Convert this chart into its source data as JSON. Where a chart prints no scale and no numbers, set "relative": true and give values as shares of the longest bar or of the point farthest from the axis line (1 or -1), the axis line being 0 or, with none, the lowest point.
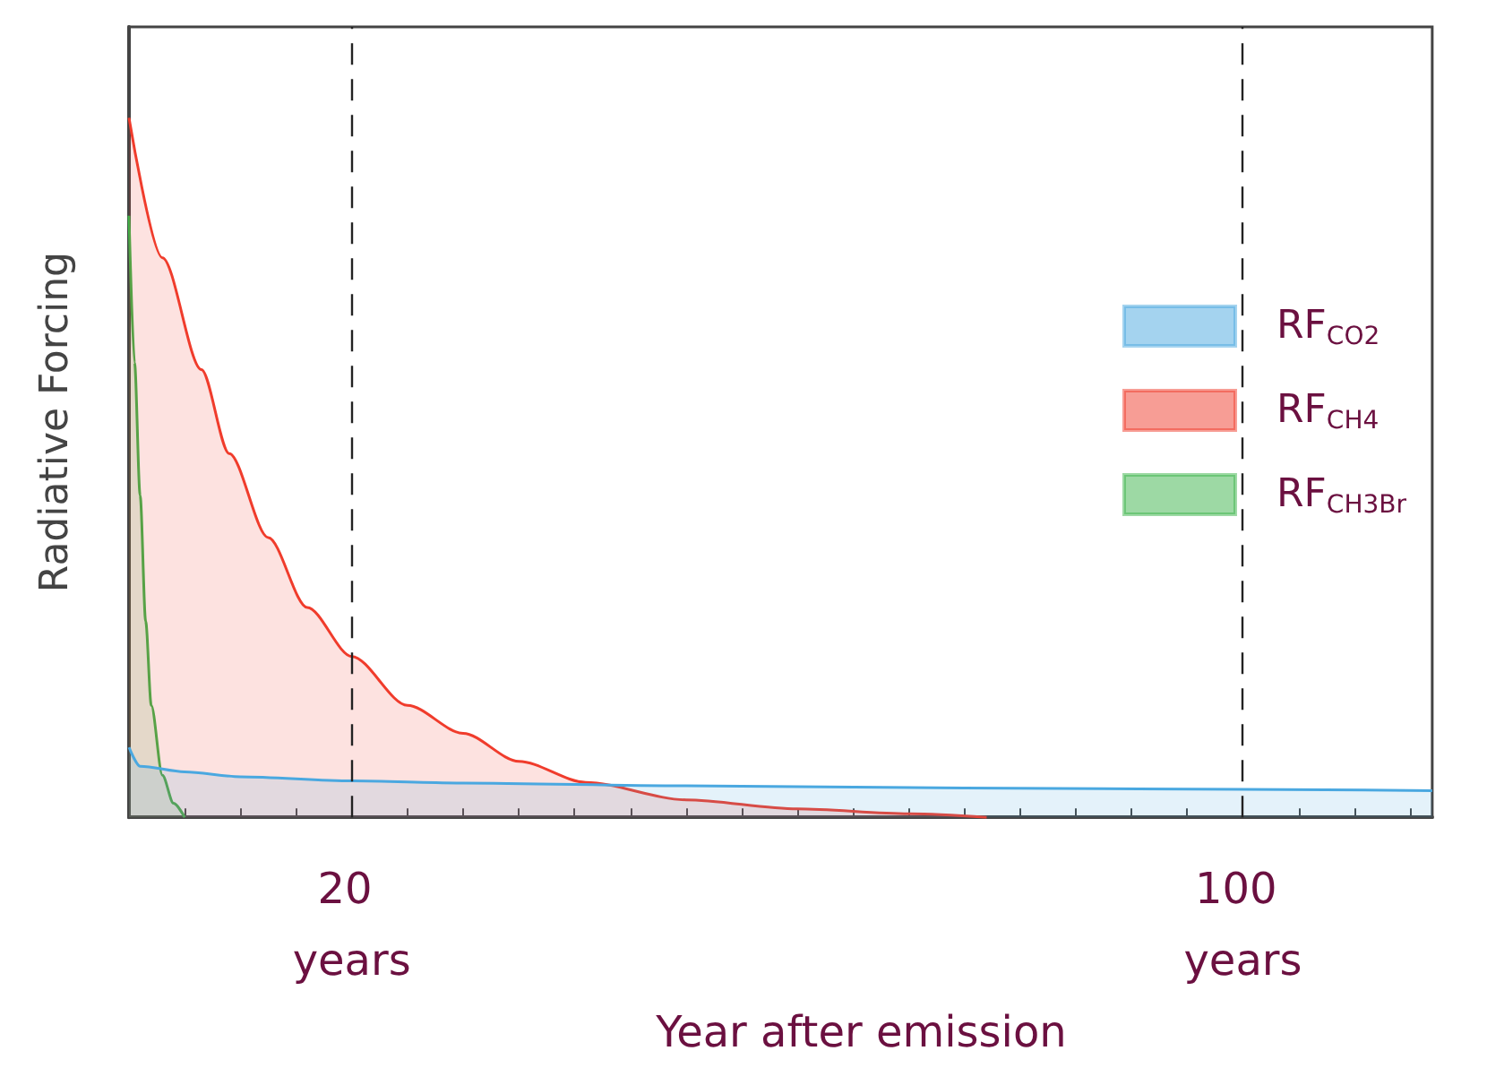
{
  "chart_data": {
    "type": "area",
    "relative": true,
    "xlabel": "Year after emission",
    "ylabel": "Radiative Forcing",
    "xlim": [
      0,
      117
    ],
    "xticks": [
      {
        "value": 0,
        "label": null
      },
      {
        "value": 5,
        "label": null
      },
      {
        "value": 10,
        "label": null
      },
      {
        "value": 15,
        "label": null
      },
      {
        "value": 20,
        "label": "20 years"
      },
      {
        "value": 25,
        "label": null
      },
      {
        "value": 30,
        "label": null
      },
      {
        "value": 35,
        "label": null
      },
      {
        "value": 40,
        "label": null
      },
      {
        "value": 45,
        "label": null
      },
      {
        "value": 50,
        "label": null
      },
      {
        "value": 55,
        "label": null
      },
      {
        "value": 60,
        "label": null
      },
      {
        "value": 65,
        "label": null
      },
      {
        "value": 70,
        "label": null
      },
      {
        "value": 75,
        "label": null
      },
      {
        "value": 80,
        "label": null
      },
      {
        "value": 85,
        "label": null
      },
      {
        "value": 90,
        "label": null
      },
      {
        "value": 95,
        "label": null
      },
      {
        "value": 100,
        "label": "100 years"
      },
      {
        "value": 105,
        "label": null
      },
      {
        "value": 110,
        "label": null
      },
      {
        "value": 115,
        "label": null
      }
    ],
    "series": [
      {
        "name": "RF$_{CO2}$",
        "color": "#4aa8e0",
        "x": [
          0,
          1,
          5,
          10,
          20,
          30,
          50,
          75,
          100,
          117
        ],
        "values": [
          0.1,
          0.073,
          0.065,
          0.058,
          0.052,
          0.049,
          0.045,
          0.042,
          0.04,
          0.038
        ]
      },
      {
        "name": "RF$_{CH4}$",
        "color": "#f03c2c",
        "x": [
          0,
          3,
          6.5,
          9,
          12.5,
          16,
          20,
          25,
          30,
          35,
          41,
          50,
          60,
          70,
          77
        ],
        "values": [
          1,
          0.8,
          0.64,
          0.52,
          0.4,
          0.3,
          0.23,
          0.16,
          0.12,
          0.08,
          0.05,
          0.025,
          0.012,
          0.005,
          0
        ]
      },
      {
        "name": "RF$_{CH3Br}$",
        "color": "#3cb44a",
        "x": [
          0,
          0.5,
          1,
          1.5,
          2,
          3,
          4,
          5
        ],
        "values": [
          0.86,
          0.65,
          0.46,
          0.28,
          0.16,
          0.06,
          0.02,
          0
        ]
      }
    ],
    "ref_lines": [
      {
        "axis": "x",
        "value": 20,
        "line_style": "dashed",
        "color": "#222222"
      },
      {
        "axis": "x",
        "value": 100,
        "line_style": "dashed",
        "color": "#222222"
      }
    ],
    "legend": "right",
    "grid": false,
    "marker": "none"
  }
}
